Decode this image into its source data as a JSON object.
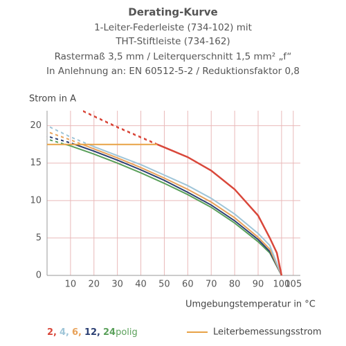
{
  "chart_data": {
    "type": "line",
    "title": "Derating-Kurve",
    "subtitle": [
      "1-Leiter-Federleiste (734-102) mit",
      "THT-Stiftleiste (734-162)",
      "Rastermaß 3,5 mm / Leiterquerschnitt 1,5 mm² „f“",
      "In Anlehnung an: EN 60512-5-2 / Reduktionsfaktor 0,8"
    ],
    "y_label": "Strom in A",
    "x_label": "Umgebungstemperatur in °C",
    "xlim": [
      0,
      108
    ],
    "ylim": [
      0,
      22
    ],
    "xticks": [
      10,
      20,
      30,
      40,
      50,
      60,
      70,
      80,
      90,
      100,
      105
    ],
    "yticks": [
      0,
      5,
      10,
      15,
      20
    ],
    "grid": true,
    "grid_color": "#e9b9b9",
    "legend_unit": "polig",
    "series": [
      {
        "name": "2,",
        "color": "#d9473a",
        "x": [
          15,
          30,
          47,
          60,
          70,
          80,
          90,
          95,
          98,
          100
        ],
        "values": [
          22,
          19.8,
          17.5,
          15.8,
          14,
          11.5,
          8,
          5,
          3,
          0
        ]
      },
      {
        "name": "4,",
        "color": "#9fc5d8",
        "x": [
          0,
          10,
          20,
          30,
          40,
          50,
          60,
          70,
          80,
          90,
          95,
          100
        ],
        "values": [
          20,
          18.5,
          17.2,
          16,
          14.8,
          13.4,
          12,
          10.3,
          8.2,
          5.6,
          4,
          0
        ]
      },
      {
        "name": "6,",
        "color": "#e8a25a",
        "x": [
          0,
          10,
          20,
          30,
          40,
          50,
          60,
          70,
          80,
          90,
          95,
          100
        ],
        "values": [
          19.2,
          18.1,
          16.9,
          15.7,
          14.4,
          13,
          11.5,
          9.8,
          7.7,
          5.1,
          3.5,
          0
        ]
      },
      {
        "name": "12,",
        "color": "#2b3f73",
        "x": [
          0,
          10,
          20,
          30,
          40,
          50,
          60,
          70,
          80,
          90,
          95,
          100
        ],
        "values": [
          18.6,
          17.7,
          16.6,
          15.4,
          14.1,
          12.7,
          11.1,
          9.4,
          7.3,
          4.8,
          3.2,
          0
        ]
      },
      {
        "name": "24",
        "color": "#5aa05a",
        "x": [
          0,
          10,
          20,
          30,
          40,
          50,
          60,
          70,
          80,
          90,
          95,
          100
        ],
        "values": [
          18.2,
          17.3,
          16.2,
          15,
          13.7,
          12.3,
          10.8,
          9.1,
          7,
          4.5,
          3,
          0
        ]
      }
    ],
    "rated_current": {
      "name": "Leiterbemessungsstrom",
      "color": "#e8a245",
      "x": [
        0,
        47
      ],
      "values": [
        17.5,
        17.5
      ]
    }
  }
}
